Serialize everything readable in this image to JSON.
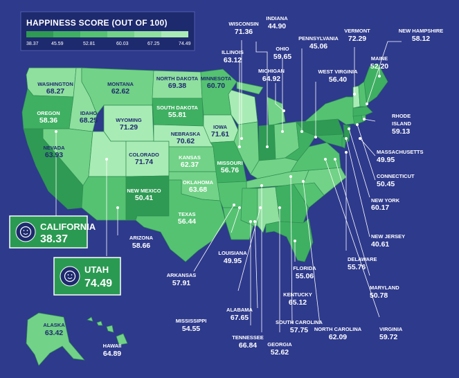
{
  "legend": {
    "title": "HAPPINESS SCORE (OUT OF 100)",
    "ticks": [
      "38.37",
      "45.59",
      "52.81",
      "60.03",
      "67.25",
      "74.49"
    ],
    "colors": [
      "#2e9a53",
      "#3fb062",
      "#55c272",
      "#72d287",
      "#8fdf9f",
      "#a9ebb5"
    ]
  },
  "colors": {
    "background": "#2e3a8c",
    "legend_box": "#1e2a6e",
    "callout": "#2a9a52"
  },
  "callouts": {
    "california": {
      "name": "CALIFORNIA",
      "value": "38.37",
      "icon": "smiley-face-icon"
    },
    "utah": {
      "name": "UTAH",
      "value": "74.49",
      "icon": "smiley-face-icon"
    }
  },
  "states": {
    "washington": {
      "name": "WASHINGTON",
      "value": "68.27"
    },
    "oregon": {
      "name": "OREGON",
      "value": "58.36"
    },
    "idaho": {
      "name": "IDAHO",
      "value": "68.25"
    },
    "montana": {
      "name": "MONTANA",
      "value": "62.62"
    },
    "wyoming": {
      "name": "WYOMING",
      "value": "71.29"
    },
    "nevada": {
      "name": "NEVADA",
      "value": "63.93"
    },
    "colorado": {
      "name": "COLORADO",
      "value": "71.74"
    },
    "new_mexico": {
      "name": "NEW MEXICO",
      "value": "50.41"
    },
    "arizona": {
      "name": "ARIZONA",
      "value": "58.66"
    },
    "north_dakota": {
      "name": "NORTH DAKOTA",
      "value": "69.38"
    },
    "south_dakota": {
      "name": "SOUTH DAKOTA",
      "value": "55.81"
    },
    "nebraska": {
      "name": "NEBRASKA",
      "value": "70.62"
    },
    "kansas": {
      "name": "KANSAS",
      "value": "62.37"
    },
    "oklahoma": {
      "name": "OKLAHOMA",
      "value": "63.68"
    },
    "texas": {
      "name": "TEXAS",
      "value": "56.44"
    },
    "minnesota": {
      "name": "MINNESOTA",
      "value": "60.70"
    },
    "iowa": {
      "name": "IOWA",
      "value": "71.61"
    },
    "missouri": {
      "name": "MISSOURI",
      "value": "56.76"
    },
    "wisconsin": {
      "name": "WISCONSIN",
      "value": "71.36"
    },
    "illinois": {
      "name": "ILLINOIS",
      "value": "63.12"
    },
    "indiana": {
      "name": "INDIANA",
      "value": "44.90"
    },
    "michigan": {
      "name": "MICHIGAN",
      "value": "64.92"
    },
    "ohio": {
      "name": "OHIO",
      "value": "59.65"
    },
    "pennsylvania": {
      "name": "PENNSYLVANIA",
      "value": "45.06"
    },
    "west_virginia": {
      "name": "WEST VIRGINIA",
      "value": "56.40"
    },
    "vermont": {
      "name": "VERMONT",
      "value": "72.29"
    },
    "new_hampshire": {
      "name": "NEW HAMPSHIRE",
      "value": "58.12"
    },
    "maine": {
      "name": "MAINE",
      "value": "52.20"
    },
    "rhode_island": {
      "name1": "RHODE",
      "name2": "ISLAND",
      "value": "59.13"
    },
    "massachusetts": {
      "name": "MASSACHUSETTS",
      "value": "49.95"
    },
    "connecticut": {
      "name": "CONNECTICUT",
      "value": "50.45"
    },
    "new_york": {
      "name": "NEW YORK",
      "value": "60.17"
    },
    "new_jersey": {
      "name": "NEW JERSEY",
      "value": "40.61"
    },
    "delaware": {
      "name": "DELAWARE",
      "value": "55.76"
    },
    "maryland": {
      "name": "MARYLAND",
      "value": "50.78"
    },
    "virginia": {
      "name": "VIRGINIA",
      "value": "59.72"
    },
    "north_carolina": {
      "name": "NORTH CAROLINA",
      "value": "62.09"
    },
    "south_carolina": {
      "name": "SOUTH CAROLINA",
      "value": "57.75"
    },
    "georgia": {
      "name": "GEORGIA",
      "value": "52.62"
    },
    "florida": {
      "name": "FLORIDA",
      "value": "55.06"
    },
    "alabama": {
      "name": "ALABAMA",
      "value": "67.65"
    },
    "mississippi": {
      "name": "MISSISSIPPI",
      "value": "54.55"
    },
    "tennessee": {
      "name": "TENNESSEE",
      "value": "66.84"
    },
    "kentucky": {
      "name": "KENTUCKY",
      "value": "65.12"
    },
    "louisiana": {
      "name": "LOUISIANA",
      "value": "49.95"
    },
    "arkansas": {
      "name": "ARKANSAS",
      "value": "57.91"
    },
    "alaska": {
      "name": "ALASKA",
      "value": "63.42"
    },
    "hawaii": {
      "name": "HAWAII",
      "value": "64.89"
    }
  }
}
